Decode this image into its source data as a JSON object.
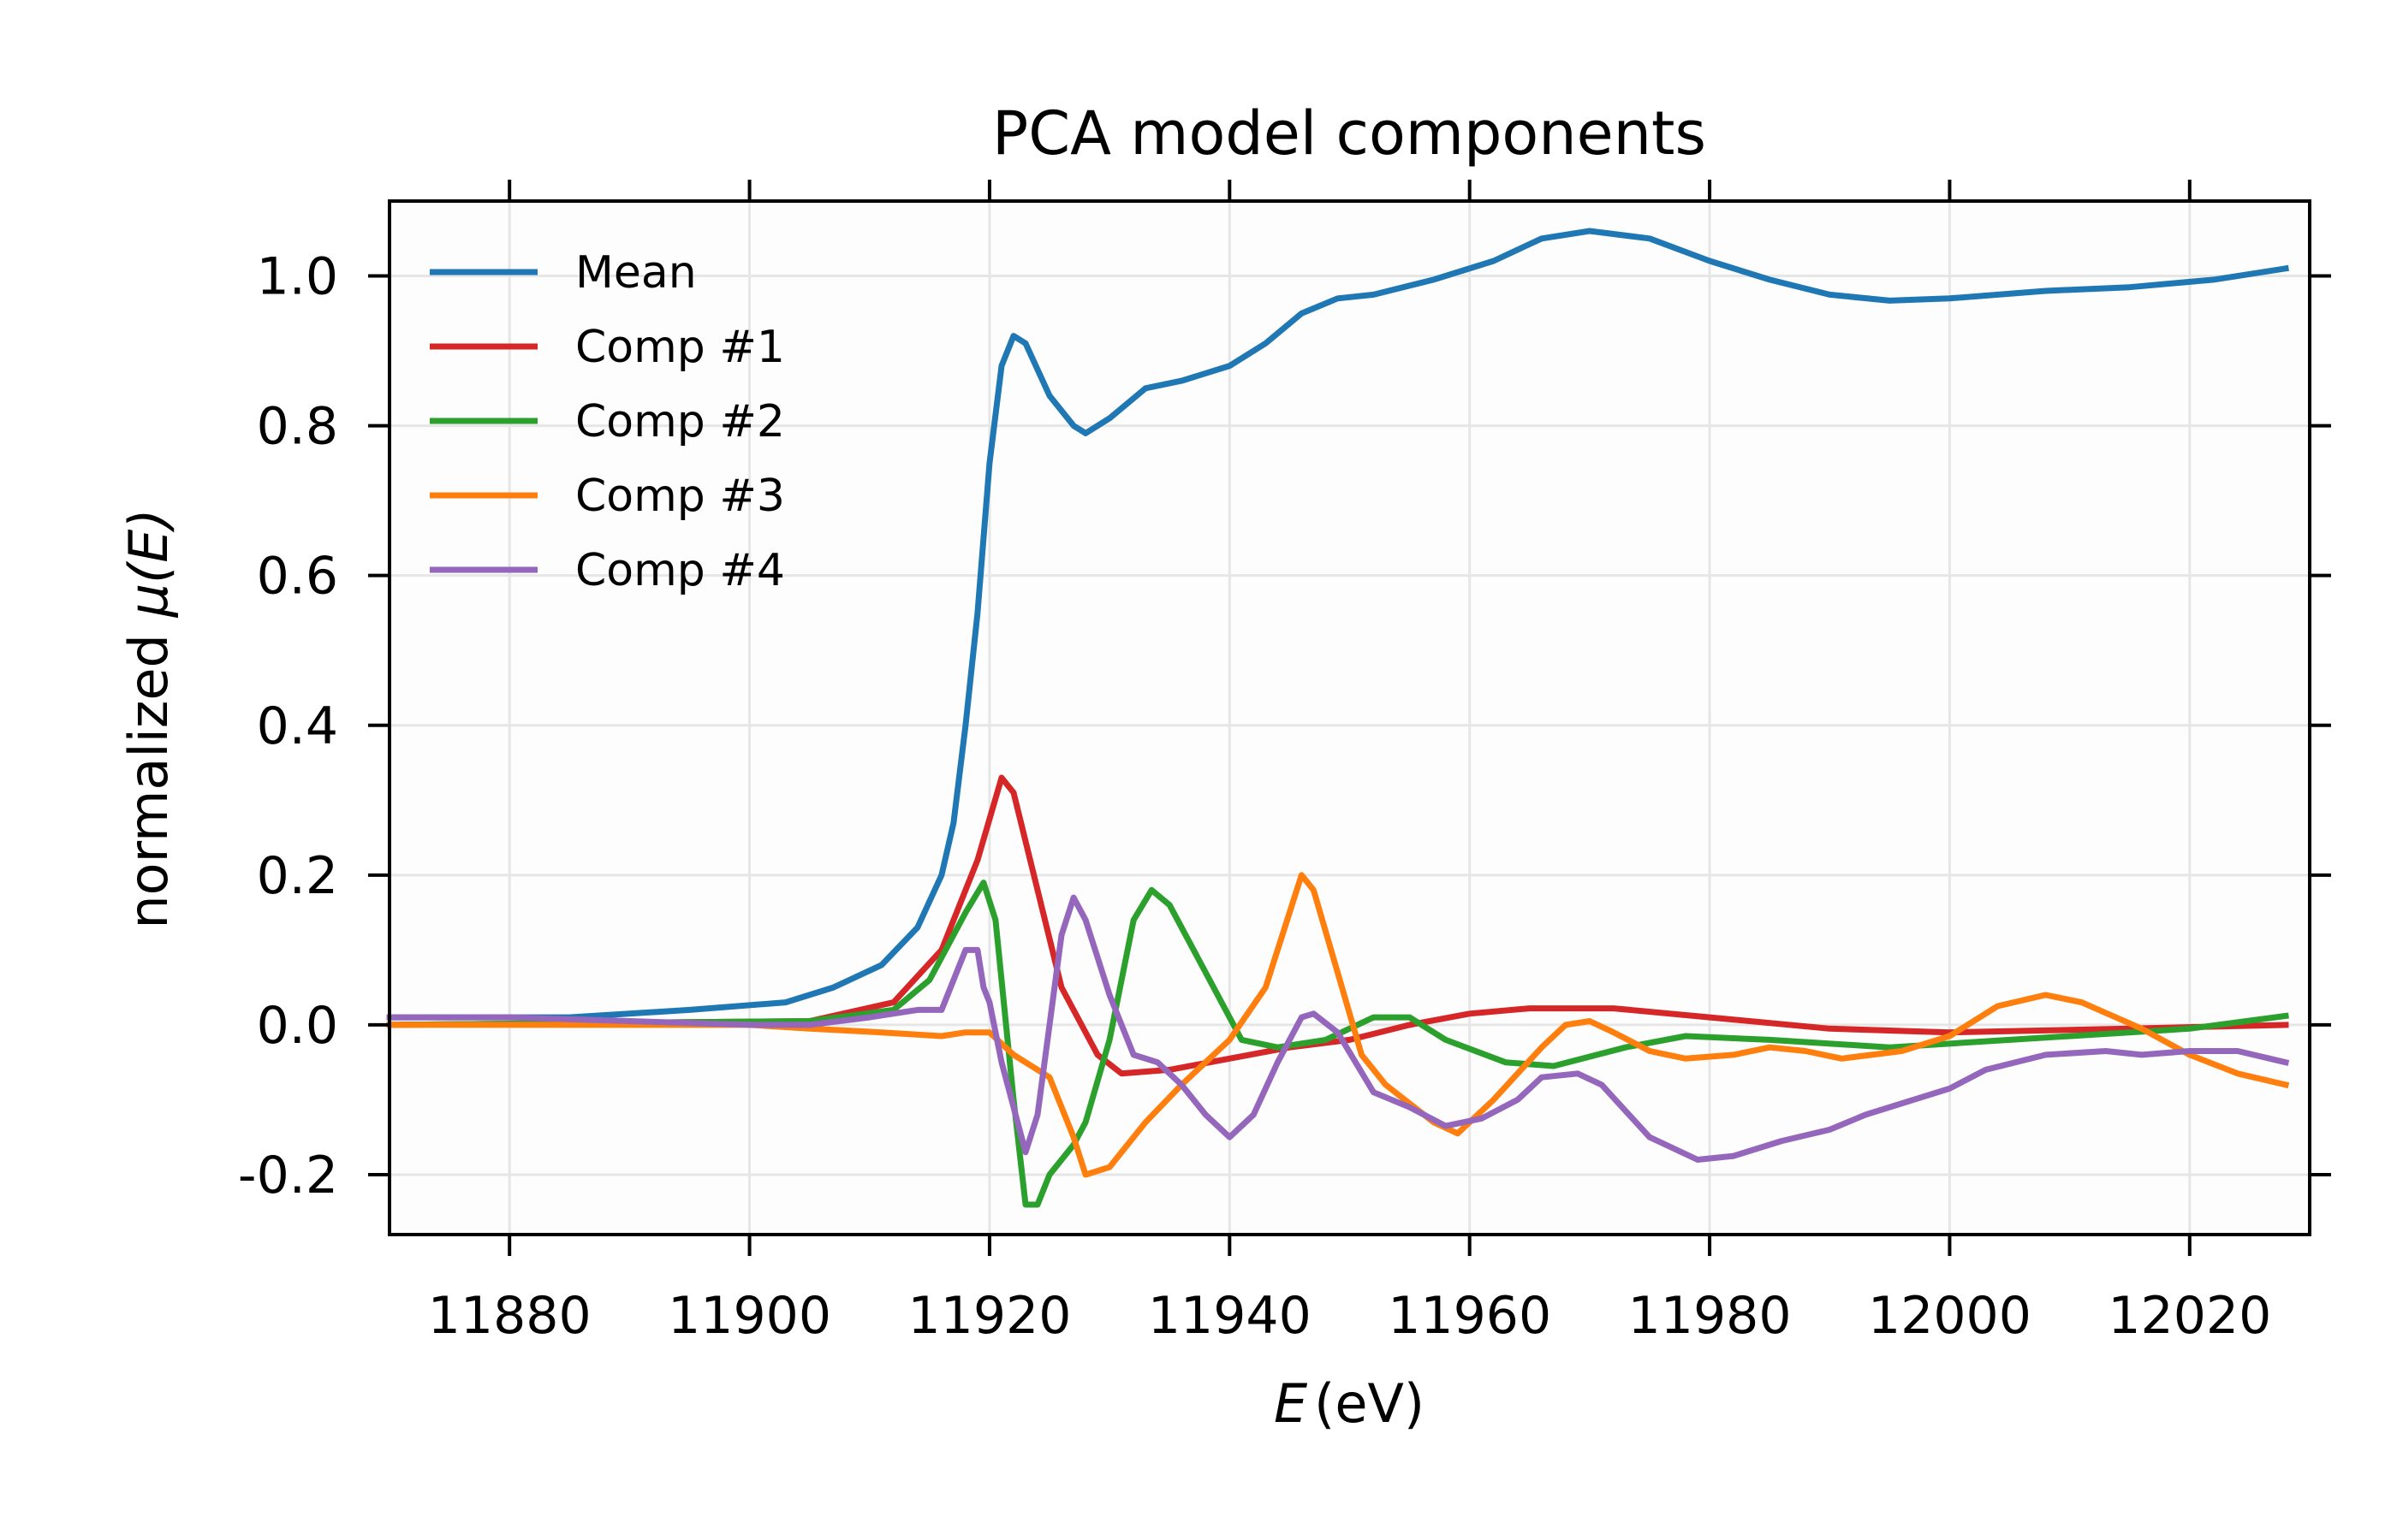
{
  "chart_data": {
    "type": "line",
    "title": "PCA model components",
    "xlabel_var": "E",
    "xlabel_unit": "(eV)",
    "ylabel_prefix": "normalized ",
    "ylabel_var": "μ(E)",
    "xlim": [
      11870,
      12030
    ],
    "ylim": [
      -0.28,
      1.1
    ],
    "xticks": [
      11880,
      11900,
      11920,
      11940,
      11960,
      11980,
      12000,
      12020
    ],
    "yticks": [
      -0.2,
      0.0,
      0.2,
      0.4,
      0.6,
      0.8,
      1.0
    ],
    "ytick_labels": [
      "-0.2",
      "0.0",
      "0.2",
      "0.4",
      "0.6",
      "0.8",
      "1.0"
    ],
    "grid": true,
    "legend_position": "top-left",
    "series": [
      {
        "name": "Mean",
        "color": "#1f77b4",
        "x": [
          11870,
          11885,
          11895,
          11903,
          11907,
          11911,
          11914,
          11916,
          11917,
          11918,
          11919,
          11920,
          11921,
          11922,
          11923,
          11925,
          11927,
          11928,
          11930,
          11933,
          11936,
          11940,
          11943,
          11946,
          11949,
          11952,
          11957,
          11962,
          11966,
          11970,
          11975,
          11980,
          11985,
          11990,
          11995,
          12000,
          12008,
          12015,
          12022,
          12028
        ],
        "y": [
          0.01,
          0.01,
          0.02,
          0.03,
          0.05,
          0.08,
          0.13,
          0.2,
          0.27,
          0.4,
          0.55,
          0.75,
          0.88,
          0.92,
          0.91,
          0.84,
          0.8,
          0.79,
          0.81,
          0.85,
          0.86,
          0.88,
          0.91,
          0.95,
          0.97,
          0.975,
          0.995,
          1.02,
          1.05,
          1.06,
          1.05,
          1.02,
          0.995,
          0.975,
          0.967,
          0.97,
          0.98,
          0.985,
          0.995,
          1.01
        ]
      },
      {
        "name": "Comp #1",
        "color": "#d62728",
        "x": [
          11870,
          11905,
          11912,
          11916,
          11919,
          11921,
          11922,
          11924,
          11926,
          11929,
          11931,
          11935,
          11940,
          11945,
          11950,
          11955,
          11960,
          11965,
          11972,
          11980,
          11990,
          12000,
          12015,
          12028
        ],
        "y": [
          0,
          0.005,
          0.03,
          0.1,
          0.22,
          0.33,
          0.31,
          0.18,
          0.05,
          -0.04,
          -0.065,
          -0.06,
          -0.045,
          -0.03,
          -0.02,
          0.0,
          0.015,
          0.022,
          0.022,
          0.01,
          -0.005,
          -0.01,
          -0.005,
          0
        ]
      },
      {
        "name": "Comp #2",
        "color": "#2ca02c",
        "x": [
          11870,
          11905,
          11912,
          11915,
          11918,
          11919.5,
          11920.5,
          11922,
          11923,
          11924,
          11925,
          11927,
          11928,
          11930,
          11932,
          11933.5,
          11935,
          11938,
          11941,
          11944,
          11948,
          11952,
          11955,
          11958,
          11963,
          11967,
          11973,
          11978,
          11985,
          11995,
          12005,
          12020,
          12028
        ],
        "y": [
          0,
          0.005,
          0.02,
          0.06,
          0.15,
          0.19,
          0.14,
          -0.1,
          -0.24,
          -0.24,
          -0.2,
          -0.16,
          -0.13,
          -0.02,
          0.14,
          0.18,
          0.16,
          0.07,
          -0.02,
          -0.03,
          -0.02,
          0.01,
          0.01,
          -0.02,
          -0.05,
          -0.055,
          -0.03,
          -0.015,
          -0.02,
          -0.03,
          -0.02,
          -0.005,
          0.012
        ]
      },
      {
        "name": "Comp #3",
        "color": "#ff7f0e",
        "x": [
          11870,
          11900,
          11905,
          11911,
          11916,
          11918,
          11920,
          11922,
          11925,
          11927,
          11928,
          11930,
          11933,
          11936,
          11940,
          11943,
          11945,
          11946,
          11947,
          11949,
          11951,
          11953,
          11957,
          11959,
          11962,
          11966,
          11968,
          11970,
          11972,
          11975,
          11978,
          11982,
          11985,
          11988,
          11991,
          11996,
          12000,
          12004,
          12008,
          12011,
          12016,
          12020,
          12024,
          12028
        ],
        "y": [
          0,
          0,
          -0.005,
          -0.01,
          -0.015,
          -0.01,
          -0.01,
          -0.04,
          -0.07,
          -0.15,
          -0.2,
          -0.19,
          -0.13,
          -0.08,
          -0.02,
          0.05,
          0.15,
          0.2,
          0.18,
          0.07,
          -0.04,
          -0.08,
          -0.13,
          -0.145,
          -0.1,
          -0.03,
          0.0,
          0.005,
          -0.01,
          -0.035,
          -0.045,
          -0.04,
          -0.03,
          -0.035,
          -0.045,
          -0.035,
          -0.015,
          0.025,
          0.04,
          0.03,
          -0.005,
          -0.04,
          -0.065,
          -0.08
        ]
      },
      {
        "name": "Comp #4",
        "color": "#9467bd",
        "x": [
          11870,
          11880,
          11890,
          11900,
          11905,
          11910,
          11914,
          11916,
          11917,
          11918,
          11919,
          11919.5,
          11920,
          11921,
          11923,
          11924,
          11925,
          11926,
          11927,
          11928,
          11930,
          11932,
          11934,
          11936,
          11938,
          11940,
          11942,
          11944,
          11946,
          11947,
          11949,
          11952,
          11955,
          11958,
          11961,
          11964,
          11966,
          11969,
          11971,
          11975,
          11979,
          11982,
          11986,
          11990,
          11993,
          12000,
          12003,
          12008,
          12013,
          12016,
          12020,
          12024,
          12028
        ],
        "y": [
          0.01,
          0.01,
          0.005,
          0.0,
          0.0,
          0.01,
          0.02,
          0.02,
          0.06,
          0.1,
          0.1,
          0.05,
          0.03,
          -0.05,
          -0.17,
          -0.12,
          0.0,
          0.12,
          0.17,
          0.14,
          0.04,
          -0.04,
          -0.05,
          -0.08,
          -0.12,
          -0.15,
          -0.12,
          -0.05,
          0.01,
          0.015,
          -0.01,
          -0.09,
          -0.11,
          -0.135,
          -0.125,
          -0.1,
          -0.07,
          -0.065,
          -0.08,
          -0.15,
          -0.18,
          -0.175,
          -0.155,
          -0.14,
          -0.12,
          -0.085,
          -0.06,
          -0.04,
          -0.035,
          -0.04,
          -0.035,
          -0.035,
          -0.05
        ]
      }
    ]
  }
}
